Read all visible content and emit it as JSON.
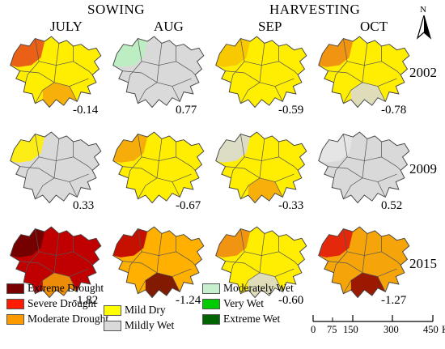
{
  "headers": {
    "season_sowing": "SOWING",
    "season_harvesting": "HARVESTING",
    "months": [
      "JULY",
      "AUG",
      "SEP",
      "OCT"
    ]
  },
  "north_arrow_label": "N",
  "rows": [
    {
      "year": "2002",
      "panels": [
        {
          "month": "JULY",
          "index": "-0.14",
          "fill": "#ffee00",
          "patch": "#e8501a",
          "patch2": "#f5a50a"
        },
        {
          "month": "AUG",
          "index": "0.77",
          "fill": "#d9d9d9",
          "patch": "#b9efc0",
          "patch2": "#d9d9d9"
        },
        {
          "month": "SEP",
          "index": "-0.59",
          "fill": "#ffee00",
          "patch": "#f7c300",
          "patch2": "#ffee00"
        },
        {
          "month": "OCT",
          "index": "-0.78",
          "fill": "#ffee00",
          "patch": "#f08a14",
          "patch2": "#d9d9d9"
        }
      ]
    },
    {
      "year": "2009",
      "panels": [
        {
          "month": "JULY",
          "index": "0.33",
          "fill": "#d9d9d9",
          "patch": "#ffee00",
          "patch2": "#d9d9d9"
        },
        {
          "month": "AUG",
          "index": "-0.67",
          "fill": "#ffee00",
          "patch": "#f5a50a",
          "patch2": "#ffee00"
        },
        {
          "month": "SEP",
          "index": "-0.33",
          "fill": "#ffee00",
          "patch": "#d9d9d9",
          "patch2": "#f5a50a"
        },
        {
          "month": "OCT",
          "index": "0.52",
          "fill": "#d9d9d9",
          "patch": "#e6e6e6",
          "patch2": "#d9d9d9"
        }
      ]
    },
    {
      "year": "2015",
      "panels": [
        {
          "month": "JULY",
          "index": "-1.82",
          "fill": "#c00000",
          "patch": "#6b0000",
          "patch2": "#f5a50a"
        },
        {
          "month": "AUG",
          "index": "-1.24",
          "fill": "#ffb000",
          "patch": "#c00000",
          "patch2": "#6b0000"
        },
        {
          "month": "SEP",
          "index": "-0.60",
          "fill": "#ffee00",
          "patch": "#f08a14",
          "patch2": "#d9d9d9"
        },
        {
          "month": "OCT",
          "index": "-1.27",
          "fill": "#f5a50a",
          "patch": "#e11b0b",
          "patch2": "#8b0000"
        }
      ]
    }
  ],
  "legend": [
    {
      "label": "Extreme Drought",
      "color": "#7a0000"
    },
    {
      "label": "Severe Drought",
      "color": "#ff1a00"
    },
    {
      "label": "Moderate Drought",
      "color": "#ff9900"
    },
    {
      "label": "Mild Dry",
      "color": "#ffff00"
    },
    {
      "label": "Mildly Wet",
      "color": "#d9d9d9"
    },
    {
      "label": "Moderately Wet",
      "color": "#c6efce"
    },
    {
      "label": "Very Wet",
      "color": "#00cc00"
    },
    {
      "label": "Extreme Wet",
      "color": "#006400"
    }
  ],
  "scale_bar": {
    "ticks": [
      "0",
      "75",
      "150",
      "300",
      "450"
    ],
    "unit": "Km"
  }
}
